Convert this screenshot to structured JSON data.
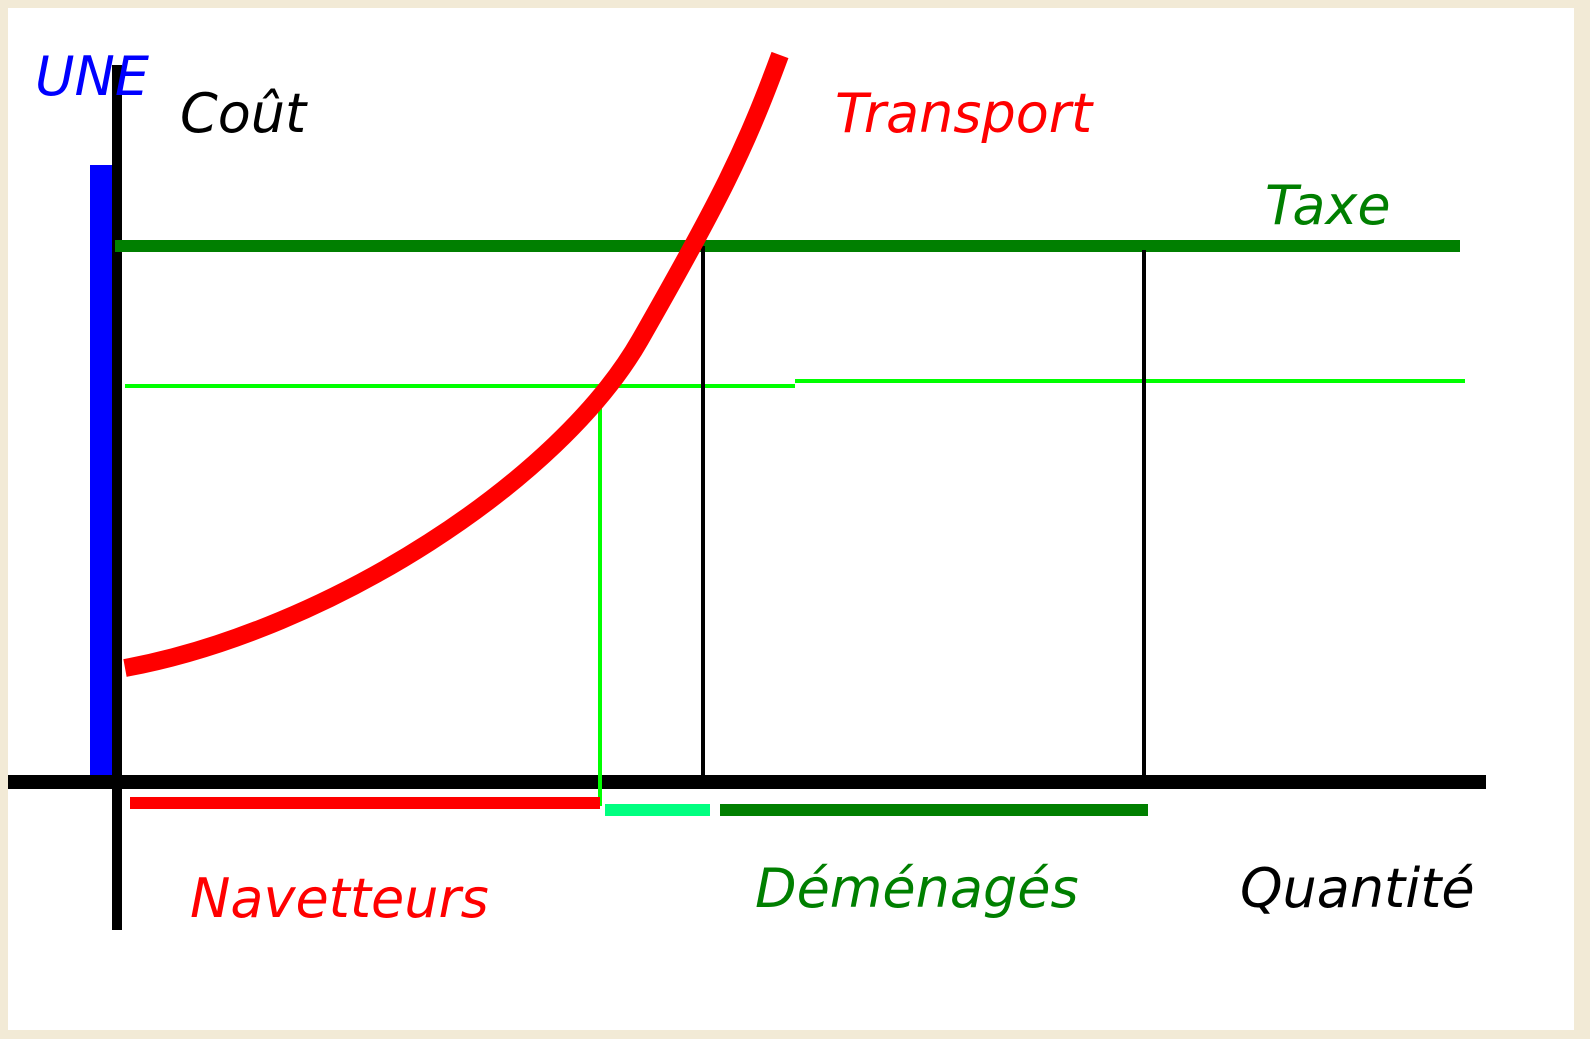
{
  "labels": {
    "y_axis_letter": "UNE",
    "y_axis": "Coût",
    "curve": "Transport",
    "tax": "Taxe",
    "commuters": "Navetteurs",
    "movers": "Déménagés",
    "x_axis": "Quantité"
  }
}
